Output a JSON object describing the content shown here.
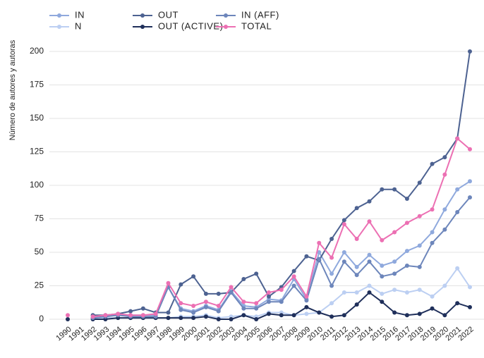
{
  "chart_data": {
    "type": "line",
    "ylabel": "Número de autores y autoras",
    "x": [
      "1990",
      "1991",
      "1992",
      "1993",
      "1994",
      "1995",
      "1996",
      "1997",
      "1998",
      "1999",
      "2000",
      "2001",
      "2002",
      "2003",
      "2004",
      "2005",
      "2006",
      "2007",
      "2008",
      "2009",
      "2010",
      "2011",
      "2012",
      "2013",
      "2014",
      "2015",
      "2016",
      "2017",
      "2018",
      "2019",
      "2020",
      "2021",
      "2022"
    ],
    "series": [
      {
        "name": "IN",
        "color": "#8fa9dd",
        "values": [
          null,
          null,
          1,
          2,
          3,
          3,
          3,
          3,
          24,
          8,
          6,
          10,
          7,
          21,
          10,
          9,
          15,
          14,
          30,
          15,
          50,
          34,
          50,
          39,
          48,
          40,
          43,
          51,
          55,
          65,
          82,
          97,
          103
        ]
      },
      {
        "name": "N",
        "color": "#bccff2",
        "values": [
          null,
          null,
          0,
          1,
          1,
          1,
          1,
          1,
          1,
          2,
          2,
          3,
          1,
          2,
          3,
          2,
          5,
          5,
          3,
          4,
          5,
          12,
          20,
          20,
          25,
          19,
          22,
          20,
          22,
          17,
          25,
          38,
          24
        ]
      },
      {
        "name": "OUT",
        "color": "#4d6291",
        "values": [
          null,
          null,
          3,
          3,
          4,
          6,
          8,
          5,
          5,
          26,
          32,
          19,
          19,
          20,
          30,
          34,
          17,
          24,
          36,
          47,
          44,
          60,
          74,
          83,
          88,
          97,
          97,
          90,
          102,
          116,
          121,
          135,
          200
        ]
      },
      {
        "name": "OUT (ACTIVE)",
        "color": "#1f2f5a",
        "values": [
          0,
          null,
          0,
          0,
          1,
          1,
          1,
          1,
          1,
          1,
          1,
          2,
          0,
          0,
          3,
          0,
          4,
          3,
          3,
          9,
          5,
          2,
          3,
          11,
          20,
          13,
          5,
          3,
          4,
          8,
          3,
          12,
          9
        ]
      },
      {
        "name": "IN (AFF)",
        "color": "#6d86bb",
        "values": [
          null,
          null,
          1,
          2,
          3,
          2,
          2,
          2,
          24,
          7,
          5,
          9,
          6,
          20,
          8,
          8,
          13,
          13,
          25,
          14,
          45,
          25,
          43,
          33,
          43,
          32,
          34,
          40,
          39,
          57,
          67,
          80,
          91
        ]
      },
      {
        "name": "TOTAL",
        "color": "#ec70b3",
        "values": [
          3,
          null,
          2,
          3,
          4,
          3,
          3,
          4,
          27,
          12,
          10,
          13,
          10,
          24,
          13,
          12,
          20,
          22,
          32,
          17,
          57,
          46,
          71,
          60,
          73,
          59,
          65,
          72,
          77,
          82,
          108,
          135,
          127
        ]
      }
    ],
    "ylim": [
      0,
      200
    ],
    "yticks": [
      0,
      25,
      50,
      75,
      100,
      125,
      150,
      175,
      200
    ],
    "grid": true
  }
}
